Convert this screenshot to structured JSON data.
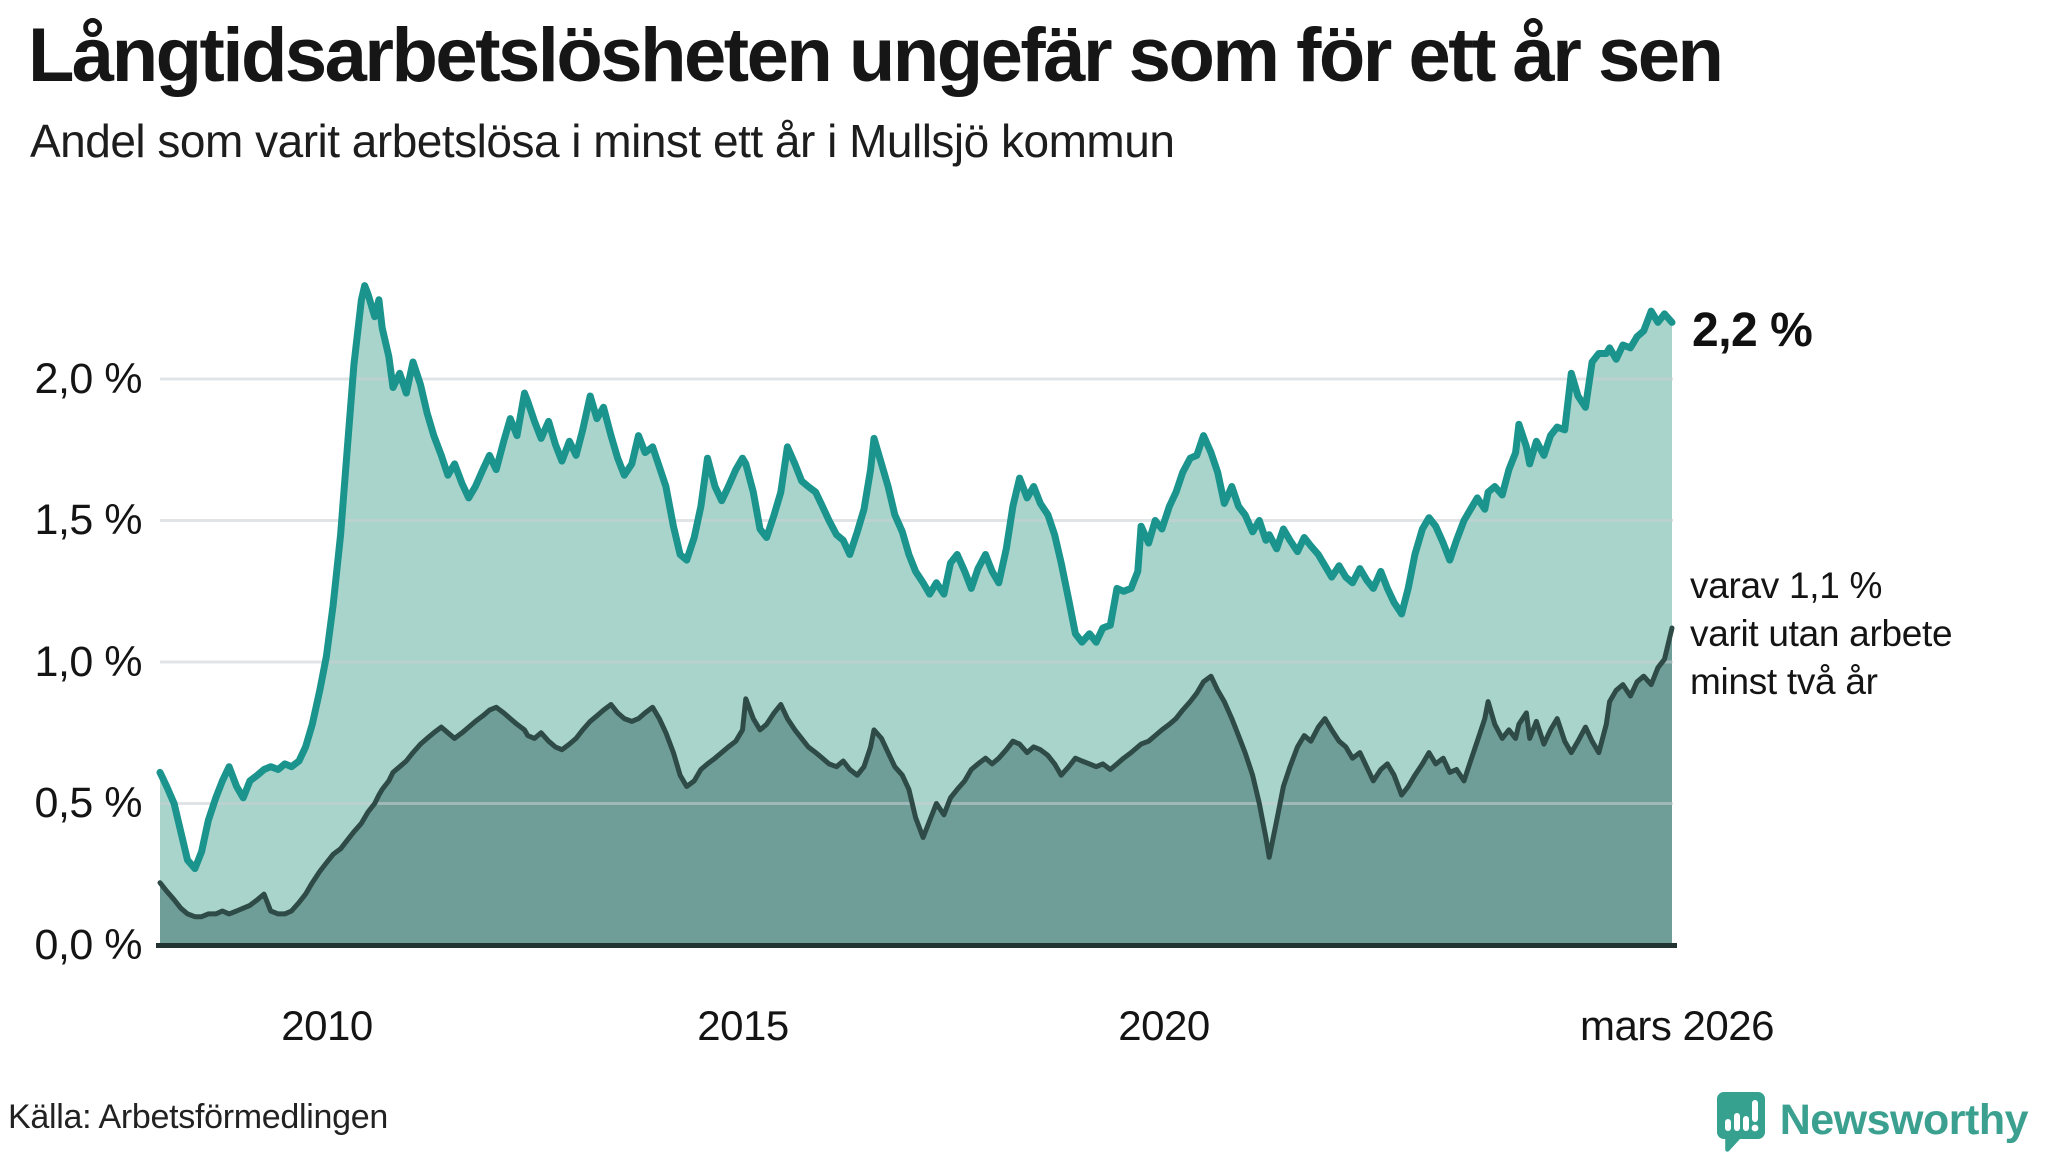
{
  "header": {
    "title": "Långtidsarbetslösheten ungefär som för ett år sen",
    "subtitle": "Andel som varit arbetslösa i minst ett år i Mullsjö kommun"
  },
  "chart_data": {
    "type": "area",
    "title": "Långtidsarbetslösheten ungefär som för ett år sen",
    "subtitle": "Andel som varit arbetslösa i minst ett år i Mullsjö kommun",
    "x_axis": {
      "tick_labels": [
        "2010",
        "2015",
        "2020",
        "mars 2026"
      ],
      "tick_positions_years": [
        2010,
        2015,
        2020,
        2026.17
      ],
      "range_years": [
        2008.0,
        2026.17
      ],
      "grid": false
    },
    "y_axis": {
      "tick_labels": [
        "2,0 %",
        "1,5 %",
        "1,0 %",
        "0,5 %",
        "0,0 %"
      ],
      "tick_values": [
        2.0,
        1.5,
        1.0,
        0.5,
        0.0
      ],
      "unit": "%",
      "range": [
        0,
        2.45
      ],
      "grid": true
    },
    "series": [
      {
        "name": "Andel arbetslösa minst ett år",
        "line_color": "#1a948c",
        "fill_color": "#a9d4cc",
        "end_value": 2.2,
        "end_value_label": "2,2 %"
      },
      {
        "name": "Andel utan arbete minst två år",
        "line_color": "#2e4b47",
        "fill_color": "#6f9d98",
        "end_value": 1.1,
        "end_value_label": "1,1 %"
      }
    ],
    "points": [
      [
        2008.0,
        0.61,
        0.22
      ],
      [
        2008.08,
        0.56,
        0.19
      ],
      [
        2008.17,
        0.5,
        0.16
      ],
      [
        2008.25,
        0.4,
        0.13
      ],
      [
        2008.33,
        0.3,
        0.11
      ],
      [
        2008.42,
        0.27,
        0.1
      ],
      [
        2008.5,
        0.33,
        0.1
      ],
      [
        2008.58,
        0.44,
        0.11
      ],
      [
        2008.67,
        0.52,
        0.11
      ],
      [
        2008.75,
        0.58,
        0.12
      ],
      [
        2008.83,
        0.63,
        0.11
      ],
      [
        2008.92,
        0.56,
        0.12
      ],
      [
        2009.0,
        0.52,
        0.13
      ],
      [
        2009.08,
        0.58,
        0.14
      ],
      [
        2009.17,
        0.6,
        0.16
      ],
      [
        2009.25,
        0.62,
        0.18
      ],
      [
        2009.33,
        0.63,
        0.12
      ],
      [
        2009.42,
        0.62,
        0.11
      ],
      [
        2009.5,
        0.64,
        0.11
      ],
      [
        2009.58,
        0.63,
        0.12
      ],
      [
        2009.67,
        0.65,
        0.15
      ],
      [
        2009.75,
        0.7,
        0.18
      ],
      [
        2009.83,
        0.78,
        0.22
      ],
      [
        2009.92,
        0.9,
        0.26
      ],
      [
        2010.0,
        1.02,
        0.29
      ],
      [
        2010.08,
        1.2,
        0.32
      ],
      [
        2010.17,
        1.45,
        0.34
      ],
      [
        2010.25,
        1.75,
        0.37
      ],
      [
        2010.33,
        2.05,
        0.4
      ],
      [
        2010.42,
        2.28,
        0.43
      ],
      [
        2010.46,
        2.33,
        0.45
      ],
      [
        2010.5,
        2.3,
        0.47
      ],
      [
        2010.58,
        2.22,
        0.5
      ],
      [
        2010.63,
        2.28,
        0.53
      ],
      [
        2010.67,
        2.18,
        0.55
      ],
      [
        2010.75,
        2.08,
        0.58
      ],
      [
        2010.8,
        1.97,
        0.61
      ],
      [
        2010.88,
        2.02,
        0.63
      ],
      [
        2010.96,
        1.95,
        0.65
      ],
      [
        2011.04,
        2.06,
        0.68
      ],
      [
        2011.13,
        1.98,
        0.71
      ],
      [
        2011.21,
        1.88,
        0.73
      ],
      [
        2011.29,
        1.8,
        0.75
      ],
      [
        2011.38,
        1.73,
        0.77
      ],
      [
        2011.46,
        1.66,
        0.75
      ],
      [
        2011.54,
        1.7,
        0.73
      ],
      [
        2011.63,
        1.63,
        0.75
      ],
      [
        2011.71,
        1.58,
        0.77
      ],
      [
        2011.79,
        1.62,
        0.79
      ],
      [
        2011.88,
        1.68,
        0.81
      ],
      [
        2011.96,
        1.73,
        0.83
      ],
      [
        2012.04,
        1.68,
        0.84
      ],
      [
        2012.13,
        1.78,
        0.82
      ],
      [
        2012.21,
        1.86,
        0.8
      ],
      [
        2012.29,
        1.8,
        0.78
      ],
      [
        2012.38,
        1.95,
        0.76
      ],
      [
        2012.42,
        1.92,
        0.74
      ],
      [
        2012.5,
        1.85,
        0.73
      ],
      [
        2012.58,
        1.79,
        0.75
      ],
      [
        2012.67,
        1.85,
        0.72
      ],
      [
        2012.75,
        1.77,
        0.7
      ],
      [
        2012.83,
        1.71,
        0.69
      ],
      [
        2012.92,
        1.78,
        0.71
      ],
      [
        2013.0,
        1.73,
        0.73
      ],
      [
        2013.08,
        1.82,
        0.76
      ],
      [
        2013.17,
        1.94,
        0.79
      ],
      [
        2013.25,
        1.86,
        0.81
      ],
      [
        2013.33,
        1.9,
        0.83
      ],
      [
        2013.42,
        1.8,
        0.85
      ],
      [
        2013.5,
        1.72,
        0.82
      ],
      [
        2013.58,
        1.66,
        0.8
      ],
      [
        2013.67,
        1.7,
        0.79
      ],
      [
        2013.75,
        1.8,
        0.8
      ],
      [
        2013.83,
        1.74,
        0.82
      ],
      [
        2013.92,
        1.76,
        0.84
      ],
      [
        2014.0,
        1.69,
        0.8
      ],
      [
        2014.08,
        1.62,
        0.75
      ],
      [
        2014.17,
        1.48,
        0.68
      ],
      [
        2014.25,
        1.38,
        0.6
      ],
      [
        2014.33,
        1.36,
        0.56
      ],
      [
        2014.42,
        1.44,
        0.58
      ],
      [
        2014.5,
        1.55,
        0.62
      ],
      [
        2014.58,
        1.72,
        0.64
      ],
      [
        2014.67,
        1.62,
        0.66
      ],
      [
        2014.75,
        1.57,
        0.68
      ],
      [
        2014.83,
        1.62,
        0.7
      ],
      [
        2014.92,
        1.68,
        0.72
      ],
      [
        2015.0,
        1.72,
        0.76
      ],
      [
        2015.04,
        1.7,
        0.87
      ],
      [
        2015.13,
        1.6,
        0.8
      ],
      [
        2015.21,
        1.47,
        0.76
      ],
      [
        2015.29,
        1.44,
        0.78
      ],
      [
        2015.38,
        1.52,
        0.82
      ],
      [
        2015.46,
        1.6,
        0.85
      ],
      [
        2015.54,
        1.76,
        0.8
      ],
      [
        2015.63,
        1.7,
        0.76
      ],
      [
        2015.71,
        1.64,
        0.73
      ],
      [
        2015.79,
        1.62,
        0.7
      ],
      [
        2015.88,
        1.6,
        0.68
      ],
      [
        2015.96,
        1.55,
        0.66
      ],
      [
        2016.04,
        1.5,
        0.64
      ],
      [
        2016.13,
        1.45,
        0.63
      ],
      [
        2016.21,
        1.43,
        0.65
      ],
      [
        2016.29,
        1.38,
        0.62
      ],
      [
        2016.38,
        1.46,
        0.6
      ],
      [
        2016.46,
        1.54,
        0.63
      ],
      [
        2016.54,
        1.68,
        0.7
      ],
      [
        2016.58,
        1.79,
        0.76
      ],
      [
        2016.67,
        1.7,
        0.73
      ],
      [
        2016.75,
        1.62,
        0.68
      ],
      [
        2016.83,
        1.52,
        0.63
      ],
      [
        2016.92,
        1.46,
        0.6
      ],
      [
        2017.0,
        1.38,
        0.55
      ],
      [
        2017.08,
        1.32,
        0.45
      ],
      [
        2017.17,
        1.28,
        0.38
      ],
      [
        2017.25,
        1.24,
        0.44
      ],
      [
        2017.33,
        1.28,
        0.5
      ],
      [
        2017.42,
        1.24,
        0.46
      ],
      [
        2017.5,
        1.35,
        0.52
      ],
      [
        2017.58,
        1.38,
        0.55
      ],
      [
        2017.67,
        1.32,
        0.58
      ],
      [
        2017.75,
        1.26,
        0.62
      ],
      [
        2017.83,
        1.33,
        0.64
      ],
      [
        2017.92,
        1.38,
        0.66
      ],
      [
        2018.0,
        1.32,
        0.64
      ],
      [
        2018.08,
        1.28,
        0.66
      ],
      [
        2018.17,
        1.4,
        0.69
      ],
      [
        2018.25,
        1.55,
        0.72
      ],
      [
        2018.33,
        1.65,
        0.71
      ],
      [
        2018.42,
        1.58,
        0.68
      ],
      [
        2018.5,
        1.62,
        0.7
      ],
      [
        2018.58,
        1.56,
        0.69
      ],
      [
        2018.67,
        1.52,
        0.67
      ],
      [
        2018.75,
        1.45,
        0.64
      ],
      [
        2018.83,
        1.35,
        0.6
      ],
      [
        2018.92,
        1.22,
        0.63
      ],
      [
        2019.0,
        1.1,
        0.66
      ],
      [
        2019.08,
        1.07,
        0.65
      ],
      [
        2019.17,
        1.1,
        0.64
      ],
      [
        2019.25,
        1.07,
        0.63
      ],
      [
        2019.33,
        1.12,
        0.64
      ],
      [
        2019.42,
        1.13,
        0.62
      ],
      [
        2019.5,
        1.26,
        0.64
      ],
      [
        2019.58,
        1.25,
        0.66
      ],
      [
        2019.67,
        1.26,
        0.68
      ],
      [
        2019.75,
        1.32,
        0.7
      ],
      [
        2019.79,
        1.48,
        0.71
      ],
      [
        2019.88,
        1.42,
        0.72
      ],
      [
        2019.96,
        1.5,
        0.74
      ],
      [
        2020.04,
        1.47,
        0.76
      ],
      [
        2020.13,
        1.55,
        0.78
      ],
      [
        2020.21,
        1.6,
        0.8
      ],
      [
        2020.29,
        1.67,
        0.83
      ],
      [
        2020.38,
        1.72,
        0.86
      ],
      [
        2020.46,
        1.73,
        0.89
      ],
      [
        2020.54,
        1.8,
        0.93
      ],
      [
        2020.63,
        1.74,
        0.95
      ],
      [
        2020.71,
        1.67,
        0.9
      ],
      [
        2020.79,
        1.56,
        0.86
      ],
      [
        2020.88,
        1.62,
        0.8
      ],
      [
        2020.96,
        1.55,
        0.74
      ],
      [
        2021.04,
        1.52,
        0.68
      ],
      [
        2021.13,
        1.46,
        0.6
      ],
      [
        2021.21,
        1.5,
        0.5
      ],
      [
        2021.29,
        1.43,
        0.38
      ],
      [
        2021.33,
        1.45,
        0.31
      ],
      [
        2021.42,
        1.4,
        0.44
      ],
      [
        2021.5,
        1.47,
        0.56
      ],
      [
        2021.58,
        1.43,
        0.63
      ],
      [
        2021.67,
        1.39,
        0.7
      ],
      [
        2021.75,
        1.44,
        0.74
      ],
      [
        2021.83,
        1.41,
        0.72
      ],
      [
        2021.92,
        1.38,
        0.77
      ],
      [
        2022.0,
        1.34,
        0.8
      ],
      [
        2022.08,
        1.3,
        0.76
      ],
      [
        2022.17,
        1.34,
        0.72
      ],
      [
        2022.25,
        1.3,
        0.7
      ],
      [
        2022.33,
        1.28,
        0.66
      ],
      [
        2022.42,
        1.33,
        0.68
      ],
      [
        2022.5,
        1.29,
        0.63
      ],
      [
        2022.58,
        1.26,
        0.58
      ],
      [
        2022.67,
        1.32,
        0.62
      ],
      [
        2022.75,
        1.26,
        0.64
      ],
      [
        2022.83,
        1.21,
        0.6
      ],
      [
        2022.92,
        1.17,
        0.53
      ],
      [
        2023.0,
        1.26,
        0.56
      ],
      [
        2023.08,
        1.38,
        0.6
      ],
      [
        2023.17,
        1.47,
        0.64
      ],
      [
        2023.25,
        1.51,
        0.68
      ],
      [
        2023.33,
        1.48,
        0.64
      ],
      [
        2023.42,
        1.42,
        0.66
      ],
      [
        2023.5,
        1.36,
        0.61
      ],
      [
        2023.58,
        1.43,
        0.62
      ],
      [
        2023.67,
        1.5,
        0.58
      ],
      [
        2023.75,
        1.54,
        0.65
      ],
      [
        2023.83,
        1.58,
        0.72
      ],
      [
        2023.92,
        1.54,
        0.8
      ],
      [
        2023.96,
        1.6,
        0.86
      ],
      [
        2024.04,
        1.62,
        0.78
      ],
      [
        2024.13,
        1.59,
        0.73
      ],
      [
        2024.21,
        1.68,
        0.76
      ],
      [
        2024.29,
        1.74,
        0.73
      ],
      [
        2024.33,
        1.84,
        0.78
      ],
      [
        2024.42,
        1.76,
        0.82
      ],
      [
        2024.46,
        1.7,
        0.73
      ],
      [
        2024.54,
        1.78,
        0.79
      ],
      [
        2024.63,
        1.73,
        0.71
      ],
      [
        2024.71,
        1.8,
        0.76
      ],
      [
        2024.79,
        1.83,
        0.8
      ],
      [
        2024.88,
        1.82,
        0.72
      ],
      [
        2024.96,
        2.02,
        0.68
      ],
      [
        2025.04,
        1.94,
        0.72
      ],
      [
        2025.13,
        1.9,
        0.77
      ],
      [
        2025.21,
        2.06,
        0.72
      ],
      [
        2025.29,
        2.09,
        0.68
      ],
      [
        2025.38,
        2.09,
        0.78
      ],
      [
        2025.42,
        2.11,
        0.86
      ],
      [
        2025.5,
        2.07,
        0.9
      ],
      [
        2025.58,
        2.12,
        0.92
      ],
      [
        2025.67,
        2.11,
        0.88
      ],
      [
        2025.75,
        2.15,
        0.93
      ],
      [
        2025.83,
        2.17,
        0.95
      ],
      [
        2025.92,
        2.24,
        0.92
      ],
      [
        2026.0,
        2.2,
        0.98
      ],
      [
        2026.08,
        2.23,
        1.01
      ],
      [
        2026.17,
        2.2,
        1.12
      ]
    ],
    "annotations": {
      "latest_total": "2,2 %",
      "two_year_lines": [
        "varav 1,1 %",
        "varit utan arbete",
        "minst två år"
      ]
    },
    "colors": {
      "grid": "#c9cdd4",
      "axis": "#233331",
      "total_line": "#1a948c",
      "total_fill": "#a9d4cc",
      "two_year_line": "#2e4b47",
      "two_year_fill": "#6f9d98"
    }
  },
  "footer": {
    "source": "Källa: Arbetsförmedlingen",
    "brand": "Newsworthy",
    "brand_color": "#3ba08f",
    "brand_icon": "bar-chart-speech-bubble"
  }
}
